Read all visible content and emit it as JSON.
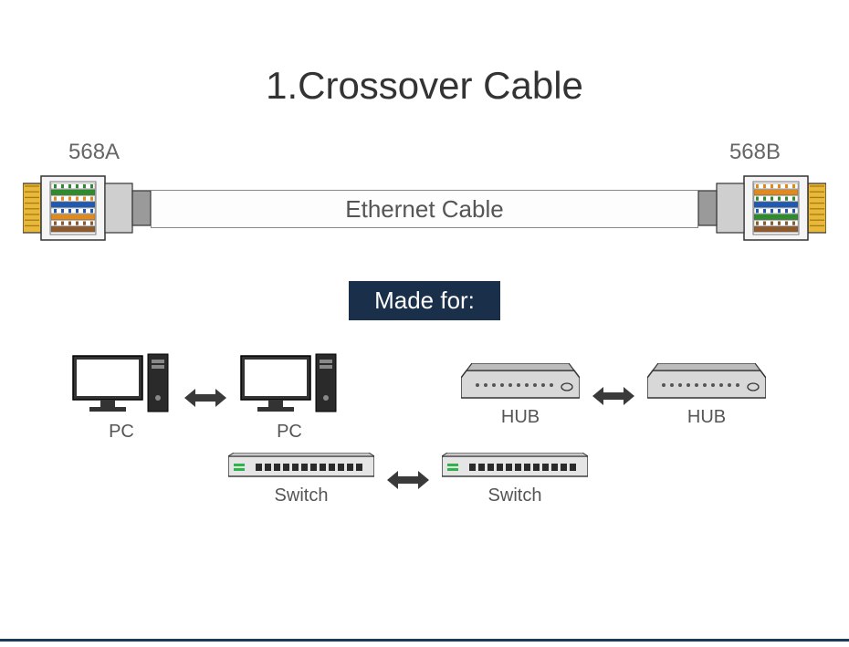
{
  "title": "1.Crossover Cable",
  "cable": {
    "standard_left": "568A",
    "standard_right": "568B",
    "body_label": "Ethernet Cable",
    "wires_568A": [
      "#ffffff",
      "#2e8b2e",
      "#ffffff",
      "#1e5ab3",
      "#ffffff",
      "#e08a1e",
      "#ffffff",
      "#8d5a2e"
    ],
    "wires_568A_stripe": [
      "#2e8b2e",
      "",
      "#e08a1e",
      "",
      "#1e5ab3",
      "",
      "#8d5a2e",
      ""
    ],
    "wires_568B": [
      "#ffffff",
      "#e08a1e",
      "#ffffff",
      "#1e5ab3",
      "#ffffff",
      "#2e8b2e",
      "#ffffff",
      "#8d5a2e"
    ],
    "wires_568B_stripe": [
      "#e08a1e",
      "",
      "#2e8b2e",
      "",
      "#1e5ab3",
      "",
      "#8d5a2e",
      ""
    ]
  },
  "made_for_label": "Made for:",
  "devices": {
    "pairs": [
      {
        "left": "PC",
        "right": "PC",
        "type": "pc"
      },
      {
        "left": "HUB",
        "right": "HUB",
        "type": "hub"
      },
      {
        "left": "Switch",
        "right": "Switch",
        "type": "switch"
      }
    ]
  },
  "colors": {
    "accent": "#1a2f4a",
    "metal": "#cfcfcf",
    "metal_dark": "#9a9a9a",
    "gold": "#e8b83a",
    "outline": "#333"
  }
}
